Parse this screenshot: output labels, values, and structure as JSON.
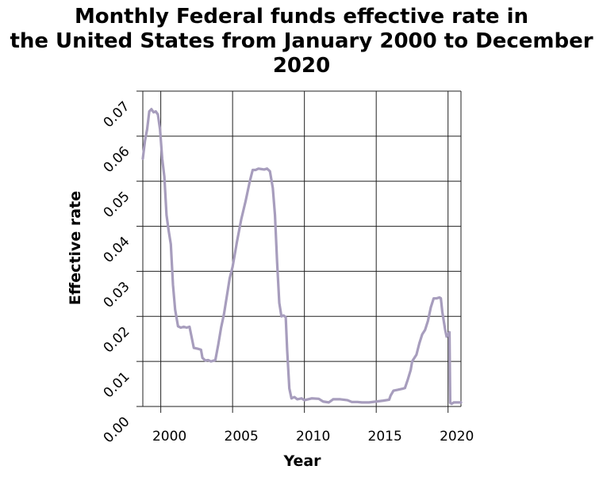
{
  "chart_data": {
    "type": "line",
    "title_lines": [
      "Monthly Federal funds effective rate in",
      "the United States from January 2000 to December",
      "2020"
    ],
    "xlabel": "Year",
    "ylabel": "Effective rate",
    "xlim": [
      1998.75,
      2020.9
    ],
    "ylim": [
      0,
      0.07
    ],
    "x_ticks": [
      2000,
      2005,
      2010,
      2015,
      2020
    ],
    "x_tick_labels": [
      "2000",
      "2005",
      "2010",
      "2015",
      "2020"
    ],
    "y_ticks": [
      0,
      0.01,
      0.02,
      0.03,
      0.04,
      0.05,
      0.06,
      0.07
    ],
    "y_tick_labels": [
      "0.00",
      "0.01",
      "0.02",
      "0.03",
      "0.04",
      "0.05",
      "0.06",
      "0.07"
    ],
    "grid": true,
    "line_color": "#a79dbd",
    "series": [
      {
        "x": [
          1998.75,
          1998.9,
          1999.05,
          1999.2,
          1999.35,
          1999.5,
          1999.65,
          1999.8,
          1999.95,
          2000.1,
          2000.25,
          2000.4,
          2000.55,
          2000.7,
          2000.85,
          2001.0,
          2001.2,
          2001.4,
          2001.6,
          2001.8,
          2002.0,
          2002.3,
          2002.6,
          2002.8,
          2002.9,
          2003.1,
          2003.3,
          2003.5,
          2003.6,
          2003.8,
          2004.0,
          2004.2,
          2004.4,
          2004.6,
          2004.8,
          2005.0,
          2005.3,
          2005.6,
          2005.9,
          2006.2,
          2006.4,
          2006.6,
          2006.8,
          2007.0,
          2007.2,
          2007.4,
          2007.6,
          2007.8,
          2007.95,
          2008.1,
          2008.25,
          2008.4,
          2008.55,
          2008.7,
          2008.8,
          2008.95,
          2009.1,
          2009.3,
          2009.5,
          2009.8,
          2010.0,
          2010.5,
          2011.0,
          2011.3,
          2011.7,
          2012.0,
          2012.5,
          2013.0,
          2013.3,
          2013.7,
          2014.0,
          2014.5,
          2015.0,
          2015.5,
          2015.9,
          2016.0,
          2016.2,
          2016.5,
          2016.9,
          2017.0,
          2017.2,
          2017.4,
          2017.5,
          2017.8,
          2018.0,
          2018.2,
          2018.4,
          2018.6,
          2018.8,
          2019.0,
          2019.2,
          2019.4,
          2019.5,
          2019.6,
          2019.8,
          2019.9,
          2020.0,
          2020.1,
          2020.15,
          2020.25,
          2020.4,
          2020.6,
          2020.9
        ],
        "y": [
          0.055,
          0.059,
          0.0615,
          0.0655,
          0.066,
          0.0653,
          0.0655,
          0.0648,
          0.0615,
          0.055,
          0.051,
          0.0425,
          0.039,
          0.036,
          0.027,
          0.0215,
          0.0178,
          0.0175,
          0.0177,
          0.0175,
          0.0177,
          0.013,
          0.0128,
          0.0126,
          0.0108,
          0.0102,
          0.0103,
          0.01,
          0.0101,
          0.0103,
          0.0137,
          0.0175,
          0.0205,
          0.0245,
          0.0285,
          0.031,
          0.0365,
          0.0415,
          0.0455,
          0.05,
          0.0525,
          0.0525,
          0.0528,
          0.0527,
          0.0526,
          0.0528,
          0.0522,
          0.0485,
          0.0425,
          0.032,
          0.023,
          0.02,
          0.0202,
          0.0198,
          0.0125,
          0.004,
          0.0018,
          0.0021,
          0.0016,
          0.0018,
          0.0014,
          0.0018,
          0.0017,
          0.0011,
          0.0009,
          0.0016,
          0.0016,
          0.0014,
          0.001,
          0.001,
          0.0009,
          0.0009,
          0.0011,
          0.0013,
          0.0015,
          0.0024,
          0.0035,
          0.0037,
          0.004,
          0.0041,
          0.006,
          0.0081,
          0.01,
          0.0115,
          0.014,
          0.016,
          0.017,
          0.019,
          0.022,
          0.024,
          0.024,
          0.0242,
          0.024,
          0.021,
          0.017,
          0.0155,
          0.016,
          0.0165,
          0.0008,
          0.0006,
          0.0009,
          0.0009,
          0.0009
        ]
      }
    ]
  }
}
